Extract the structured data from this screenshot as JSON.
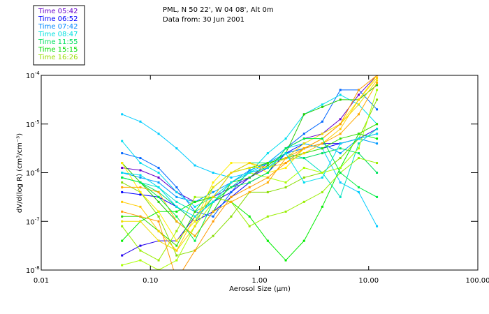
{
  "chart_data": {
    "type": "line",
    "title_lines": [
      "PML, N 50 22', W 04 08', Alt 0m",
      "Data from: 30 Jun 2001"
    ],
    "xlabel": "Aerosol Size (µm)",
    "ylabel": "dV/d(log R) (cm³/cm⁻³)",
    "xscale": "log",
    "yscale": "log",
    "xlim": [
      0.01,
      100
    ],
    "ylim_log10": [
      -8,
      -4
    ],
    "xticks": [
      "0.01",
      "0.10",
      "1.00",
      "10.00",
      "100.00"
    ],
    "yticks": [
      {
        "base": "10",
        "exp": "-4"
      },
      {
        "base": "10",
        "exp": "-5"
      },
      {
        "base": "10",
        "exp": "-6"
      },
      {
        "base": "10",
        "exp": "-7"
      },
      {
        "base": "10",
        "exp": "-8"
      }
    ],
    "legend_placement": "top-left",
    "legend": [
      {
        "label": "Time 05:42",
        "color": "#6600cc"
      },
      {
        "label": "Time 06:52",
        "color": "#0000ff"
      },
      {
        "label": "Time 07:42",
        "color": "#0088ff"
      },
      {
        "label": "Time 08:47",
        "color": "#00e0e0"
      },
      {
        "label": "Time 11:55",
        "color": "#00e060"
      },
      {
        "label": "Time 15:15",
        "color": "#00dd00"
      },
      {
        "label": "Time 16:26",
        "color": "#99dd00"
      }
    ],
    "x": [
      0.055,
      0.081,
      0.119,
      0.174,
      0.256,
      0.376,
      0.55,
      0.81,
      1.19,
      1.74,
      2.56,
      3.76,
      5.5,
      8.1,
      11.9
    ],
    "series": [
      {
        "color": "#6600cc",
        "values_log10": [
          -5.9,
          -5.95,
          -6.1,
          -6.4,
          -6.6,
          -6.5,
          -6.3,
          -6.1,
          -5.8,
          -5.5,
          -5.3,
          -5.2,
          -4.9,
          -4.4,
          -4.0
        ]
      },
      {
        "color": "#0000ff",
        "values_log10": [
          -6.4,
          -6.45,
          -6.5,
          -6.7,
          -7.0,
          -6.8,
          -6.5,
          -6.2,
          -6.0,
          -5.6,
          -5.4,
          -5.5,
          -5.4,
          -5.3,
          -5.2
        ]
      },
      {
        "color": "#2200ee",
        "values_log10": [
          -7.7,
          -7.5,
          -7.4,
          -7.4,
          -6.9,
          -6.6,
          -6.4,
          -6.1,
          -5.9,
          -5.6,
          -5.5,
          -5.4,
          -5.4,
          -5.3,
          -5.1
        ]
      },
      {
        "color": "#0066ff",
        "values_log10": [
          -5.6,
          -5.7,
          -5.9,
          -6.3,
          -6.8,
          -6.9,
          -6.4,
          -5.95,
          -5.8,
          -5.5,
          -5.2,
          -4.95,
          -4.3,
          -4.3,
          -4.7
        ]
      },
      {
        "color": "#0099ff",
        "values_log10": [
          -6.0,
          -6.1,
          -6.2,
          -6.5,
          -6.6,
          -6.4,
          -6.2,
          -5.95,
          -5.8,
          -5.6,
          -5.5,
          -5.4,
          -5.6,
          -5.3,
          -5.4
        ]
      },
      {
        "color": "#00ccff",
        "values_log10": [
          -4.8,
          -4.95,
          -5.2,
          -5.5,
          -5.85,
          -6.0,
          -6.1,
          -6.0,
          -5.8,
          -5.5,
          -5.4,
          -5.5,
          -6.2,
          -6.4,
          -7.1
        ]
      },
      {
        "color": "#00ddee",
        "values_log10": [
          -5.35,
          -5.8,
          -6.0,
          -6.4,
          -6.7,
          -6.5,
          -6.2,
          -6.0,
          -5.6,
          -5.3,
          -4.8,
          -4.6,
          -4.4,
          -4.6,
          -5.0
        ]
      },
      {
        "color": "#00e0c0",
        "values_log10": [
          -6.1,
          -6.2,
          -6.3,
          -6.6,
          -6.8,
          -6.6,
          -6.3,
          -6.0,
          -5.9,
          -5.6,
          -5.7,
          -6.0,
          -6.5,
          -5.4,
          -5.1
        ]
      },
      {
        "color": "#00e060",
        "values_log10": [
          -6.1,
          -6.2,
          -6.4,
          -6.7,
          -7.0,
          -6.5,
          -6.0,
          -5.8,
          -5.8,
          -5.7,
          -5.7,
          -5.6,
          -5.5,
          -5.6,
          -6.0
        ]
      },
      {
        "color": "#00ee00",
        "values_log10": [
          -7.4,
          -7.0,
          -6.8,
          -6.8,
          -6.6,
          -6.5,
          -6.6,
          -6.9,
          -7.4,
          -7.8,
          -7.4,
          -6.7,
          -5.9,
          -5.2,
          -5.3
        ]
      },
      {
        "color": "#33dd00",
        "values_log10": [
          -6.9,
          -6.9,
          -7.2,
          -7.5,
          -6.8,
          -6.3,
          -6.0,
          -5.9,
          -5.8,
          -5.7,
          -5.6,
          -5.5,
          -5.3,
          -5.2,
          -5.0
        ]
      },
      {
        "color": "#22cc00",
        "values_log10": [
          -5.8,
          -6.2,
          -6.6,
          -7.0,
          -7.3,
          -6.8,
          -6.2,
          -6.1,
          -5.85,
          -5.6,
          -4.8,
          -4.65,
          -4.5,
          -4.5,
          -4.2
        ]
      },
      {
        "color": "#99ee00",
        "values_log10": [
          -7.1,
          -7.6,
          -7.8,
          -7.2,
          -6.5,
          -6.5,
          -6.6,
          -7.1,
          -6.9,
          -6.8,
          -6.6,
          -6.4,
          -6.0,
          -5.7,
          -5.8
        ]
      },
      {
        "color": "#88dd00",
        "values_log10": [
          -6.2,
          -6.4,
          -6.9,
          -7.7,
          -7.6,
          -7.3,
          -6.9,
          -6.4,
          -6.4,
          -6.3,
          -6.1,
          -6.0,
          -5.7,
          -5.3,
          -4.5
        ]
      },
      {
        "color": "#aaff00",
        "values_log10": [
          -7.9,
          -7.8,
          -8.0,
          -7.8,
          -7.1,
          -6.6,
          -6.2,
          -6.0,
          -6.1,
          -6.2,
          -5.9,
          -6.0,
          -5.9,
          -5.5,
          -4.3
        ]
      },
      {
        "color": "#ffee00",
        "values_log10": [
          -5.8,
          -6.4,
          -6.8,
          -7.4,
          -7.0,
          -6.2,
          -5.8,
          -5.8,
          -6.0,
          -5.9,
          -5.5,
          -5.3,
          -5.0,
          -4.5,
          -4.0
        ]
      },
      {
        "color": "#eedd00",
        "values_log10": [
          -7.0,
          -7.0,
          -7.4,
          -7.6,
          -7.1,
          -6.3,
          -6.0,
          -5.9,
          -5.9,
          -5.7,
          -5.4,
          -5.2,
          -5.0,
          -4.6,
          -4.1
        ]
      },
      {
        "color": "#ffcc00",
        "values_log10": [
          -6.6,
          -6.7,
          -7.2,
          -7.6,
          -6.9,
          -6.5,
          -6.0,
          -5.8,
          -5.9,
          -5.8,
          -5.6,
          -5.4,
          -5.1,
          -4.5,
          -4.05
        ]
      },
      {
        "color": "#ff9900",
        "values_log10": [
          -6.8,
          -6.9,
          -7.0,
          -8.2,
          -7.6,
          -7.0,
          -6.5,
          -6.3,
          -6.1,
          -5.8,
          -5.5,
          -5.3,
          -5.0,
          -4.3,
          -4.0
        ]
      },
      {
        "color": "#ffaa00",
        "values_log10": [
          -6.3,
          -6.3,
          -6.4,
          -7.0,
          -7.3,
          -6.8,
          -6.6,
          -6.4,
          -6.2,
          -5.7,
          -5.5,
          -5.4,
          -5.2,
          -4.8,
          -4.15
        ]
      },
      {
        "color": "#00ee44",
        "values_log10": [
          -6.1,
          -6.2,
          -6.5,
          -6.9,
          -7.4,
          -6.6,
          -6.3,
          -6.2,
          -6.0,
          -5.5,
          -5.3,
          -5.3,
          -6.0,
          -6.3,
          -6.5
        ]
      },
      {
        "color": "#00ddee",
        "values_log10": [
          -6.0,
          -6.05,
          -6.3,
          -6.7,
          -6.9,
          -6.6,
          -6.2,
          -6.0,
          -5.9,
          -5.6,
          -6.2,
          -6.1,
          -5.4,
          -5.3,
          -5.2
        ]
      }
    ]
  }
}
